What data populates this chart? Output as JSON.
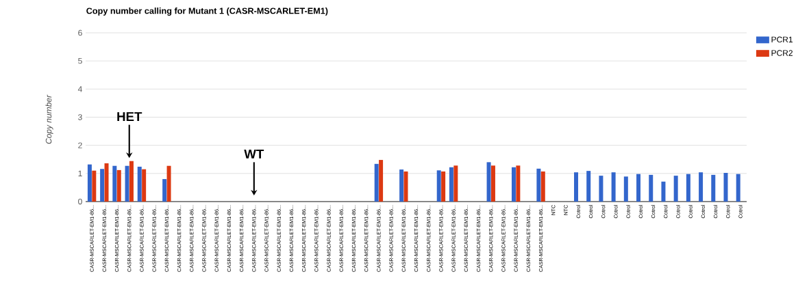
{
  "chart_data": {
    "type": "bar",
    "title": "Copy number calling for Mutant 1 (CASR-MSCARLET-EM1)",
    "ylabel": "Copy number",
    "categories": [
      "CASR-MSCARLET-EM1-86...",
      "CASR-MSCARLET-EM1-86...",
      "CASR-MSCARLET-EM1-86...",
      "CASR-MSCARLET-EM1-86...",
      "CASR-MSCARLET-EM1-86...",
      "CASR-MSCARLET-EM1-86...",
      "CASR-MSCARLET-EM1-86...",
      "CASR-MSCARLET-EM1-86...",
      "CASR-MSCARLET-EM1-86...",
      "CASR-MSCARLET-EM1-86...",
      "CASR-MSCARLET-EM1-86...",
      "CASR-MSCARLET-EM1-86...",
      "CASR-MSCARLET-EM1-86...",
      "CASR-MSCARLET-EM1-86...",
      "CASR-MSCARLET-EM1-86...",
      "CASR-MSCARLET-EM1-86...",
      "CASR-MSCARLET-EM1-86...",
      "CASR-MSCARLET-EM1-86...",
      "CASR-MSCARLET-EM1-86...",
      "CASR-MSCARLET-EM1-86...",
      "CASR-MSCARLET-EM1-86...",
      "CASR-MSCARLET-EM1-86...",
      "CASR-MSCARLET-EM1-86...",
      "CASR-MSCARLET-EM1-86...",
      "CASR-MSCARLET-EM1-86...",
      "CASR-MSCARLET-EM1-86...",
      "CASR-MSCARLET-EM1-86...",
      "CASR-MSCARLET-EM1-86...",
      "CASR-MSCARLET-EM1-86...",
      "CASR-MSCARLET-EM1-86...",
      "CASR-MSCARLET-EM1-86...",
      "CASR-MSCARLET-EM1-86...",
      "CASR-MSCARLET-EM1-86...",
      "CASR-MSCARLET-EM1-86...",
      "CASR-MSCARLET-EM1-86...",
      "CASR-MSCARLET-EM1-86...",
      "CASR-MSCARLET-EM1-86...",
      "NTC",
      "NTC",
      "Cotrol",
      "Cotrol",
      "Cotrol",
      "Cotrol",
      "Cotrol",
      "Cotrol",
      "Cotrol",
      "Cotrol",
      "Cotrol",
      "Cotrol",
      "Cotrol",
      "Cotrol",
      "Cotrol",
      "Cotrol"
    ],
    "series": [
      {
        "name": "PCR1",
        "color": "#3366cc",
        "values": [
          1.32,
          1.16,
          1.27,
          1.27,
          1.24,
          null,
          0.8,
          null,
          null,
          null,
          null,
          null,
          null,
          null,
          null,
          null,
          null,
          null,
          null,
          null,
          null,
          null,
          null,
          1.34,
          null,
          1.14,
          null,
          null,
          1.11,
          1.22,
          null,
          null,
          1.4,
          null,
          1.22,
          null,
          1.17,
          0,
          0,
          1.04,
          1.09,
          0.92,
          1.04,
          0.89,
          0.98,
          0.95,
          0.71,
          0.92,
          0.98,
          1.04,
          0.95,
          1.02,
          0.98
        ]
      },
      {
        "name": "PCR2",
        "color": "#dc3912",
        "values": [
          1.1,
          1.36,
          1.12,
          1.44,
          1.15,
          null,
          1.27,
          null,
          null,
          null,
          null,
          null,
          null,
          null,
          null,
          null,
          null,
          null,
          null,
          null,
          null,
          null,
          null,
          1.48,
          null,
          1.07,
          null,
          null,
          1.07,
          1.28,
          null,
          null,
          1.28,
          null,
          1.28,
          null,
          1.07,
          null,
          null,
          null,
          null,
          null,
          null,
          null,
          null,
          null,
          null,
          null,
          null,
          null,
          null,
          null,
          null
        ]
      }
    ],
    "ylim": [
      0,
      6
    ],
    "yticks": [
      0,
      1,
      2,
      3,
      4,
      5,
      6
    ],
    "grid": "y",
    "legend": "top right",
    "annotations": [
      "HET",
      "WT"
    ]
  }
}
